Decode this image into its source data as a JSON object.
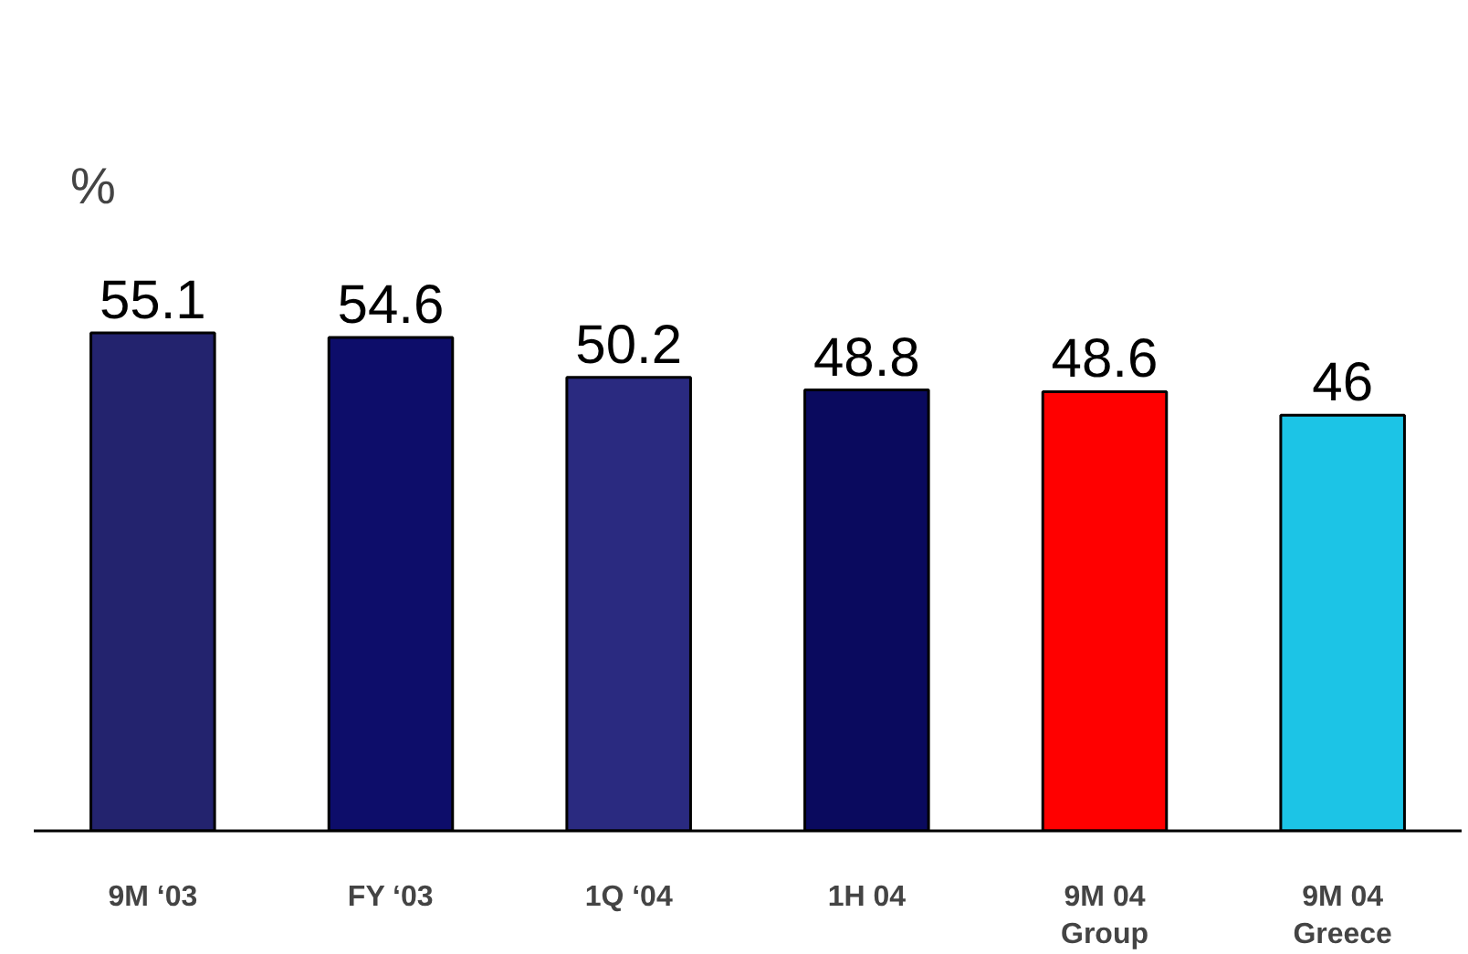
{
  "chart_data": {
    "type": "bar",
    "ylabel": "%",
    "categories": [
      "9M ‘03",
      "FY ‘03",
      "1Q ‘04",
      "1H 04",
      "9M 04\nGroup",
      "9M 04\nGreece"
    ],
    "values": [
      55.1,
      54.6,
      50.2,
      48.8,
      48.6,
      46
    ],
    "colors": [
      "#23236e",
      "#0d0d6a",
      "#2a2a80",
      "#0a0a5e",
      "#ff0000",
      "#1cc4e6"
    ],
    "data_labels": true
  }
}
